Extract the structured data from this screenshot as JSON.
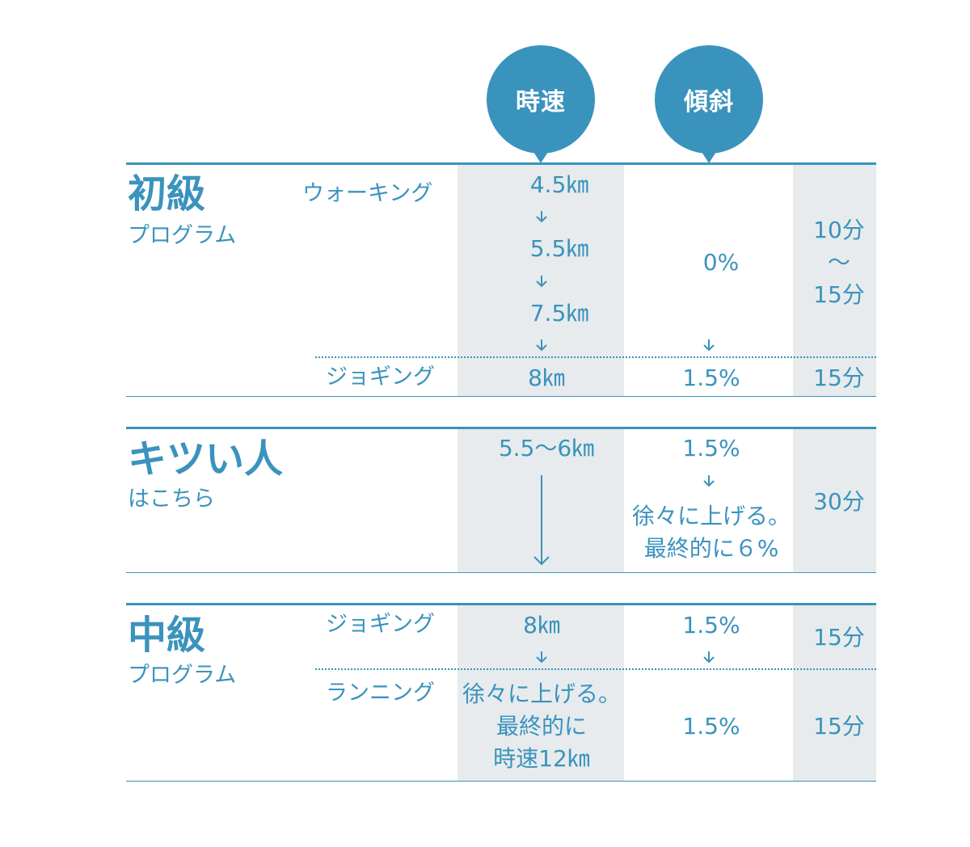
{
  "header": {
    "speed_label": "時速",
    "incline_label": "傾斜"
  },
  "beginner": {
    "title": "初級",
    "subtitle": "プログラム",
    "walking_label": "ウォーキング",
    "speed_1": "4.5㎞",
    "speed_2": "5.5㎞",
    "speed_3": "7.5㎞",
    "incline": "0%",
    "walk_time": "10分\n〜\n15分",
    "jogging_label": "ジョギング",
    "jog_speed": "8㎞",
    "jog_incline": "1.5%",
    "jog_time": "15分"
  },
  "hard": {
    "title": "キツい人",
    "subtitle": "はこちら",
    "speed": "5.5〜6㎞",
    "incline_start": "1.5%",
    "incline_note": "徐々に上げる。\n最終的に６%",
    "time": "30分"
  },
  "intermediate": {
    "title": "中級",
    "subtitle": "プログラム",
    "jogging_label": "ジョギング",
    "jog_speed": "8㎞",
    "jog_incline": "1.5%",
    "jog_time": "15分",
    "running_label": "ランニング",
    "run_speed": "徐々に上げる。\n最終的に\n時速12㎞",
    "run_incline": "1.5%",
    "run_time": "15分"
  },
  "colors": {
    "accent": "#3a93bd",
    "shade": "#e7ebed",
    "text_on_accent": "#ffffff"
  },
  "icons": [
    "down-arrow-icon",
    "long-down-arrow-icon"
  ]
}
